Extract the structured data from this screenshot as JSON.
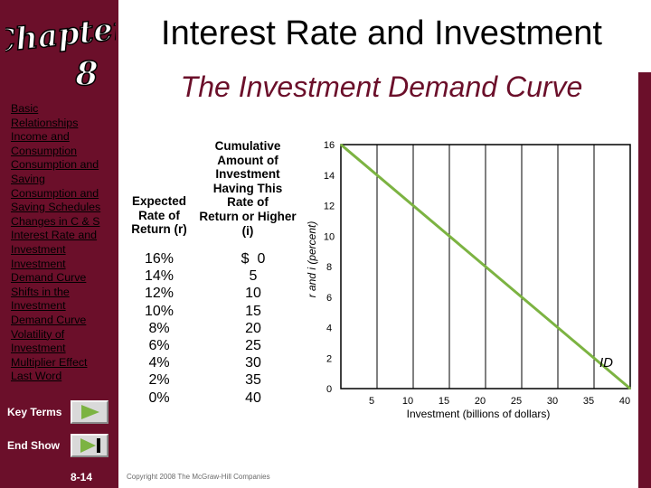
{
  "sidebar": {
    "logo_line1": "Chapter",
    "logo_line2": "8",
    "nav": [
      "Basic",
      "Relationships",
      "Income and",
      "Consumption",
      "Consumption and",
      "Saving",
      "Consumption and",
      "Saving Schedules",
      "Changes in C & S",
      "Interest Rate and",
      "Investment",
      "Investment",
      "Demand Curve",
      "Shifts in the",
      "Investment",
      "Demand Curve",
      "Volatility of",
      "Investment",
      "Multiplier Effect",
      "Last Word"
    ],
    "key_terms_label": "Key Terms",
    "end_show_label": "End Show",
    "page_number": "8-14",
    "accent_color": "#6b0f2a"
  },
  "header": {
    "title": "Interest Rate and Investment",
    "subtitle": "The Investment Demand Curve"
  },
  "table": {
    "rate_header": [
      "Expected",
      "Rate of",
      "Return (r)"
    ],
    "amount_header": [
      "Cumulative",
      "Amount of",
      "Investment",
      "Having This",
      "Rate of",
      "Return or Higher",
      "(i)"
    ],
    "rates": [
      "16%",
      "14%",
      "12%",
      "10%",
      "8%",
      "6%",
      "4%",
      "2%",
      "0%"
    ],
    "amounts": [
      "$  0",
      "5",
      "10",
      "15",
      "20",
      "25",
      "30",
      "35",
      "40"
    ]
  },
  "chart_data": {
    "type": "line",
    "xlabel": "Investment (billions of dollars)",
    "ylabel": "r and i (percent)",
    "x_ticks": [
      5,
      10,
      15,
      20,
      25,
      30,
      35,
      40
    ],
    "y_ticks": [
      0,
      2,
      4,
      6,
      8,
      10,
      12,
      14,
      16
    ],
    "xlim": [
      0,
      40
    ],
    "ylim": [
      0,
      16
    ],
    "grid": "vertical",
    "series": [
      {
        "name": "ID",
        "x": [
          0,
          5,
          10,
          15,
          20,
          25,
          30,
          35,
          40
        ],
        "y": [
          16,
          14,
          12,
          10,
          8,
          6,
          4,
          2,
          0
        ],
        "color": "#7cb342"
      }
    ]
  },
  "footer": {
    "copyright": "Copyright 2008 The McGraw-Hill Companies"
  }
}
